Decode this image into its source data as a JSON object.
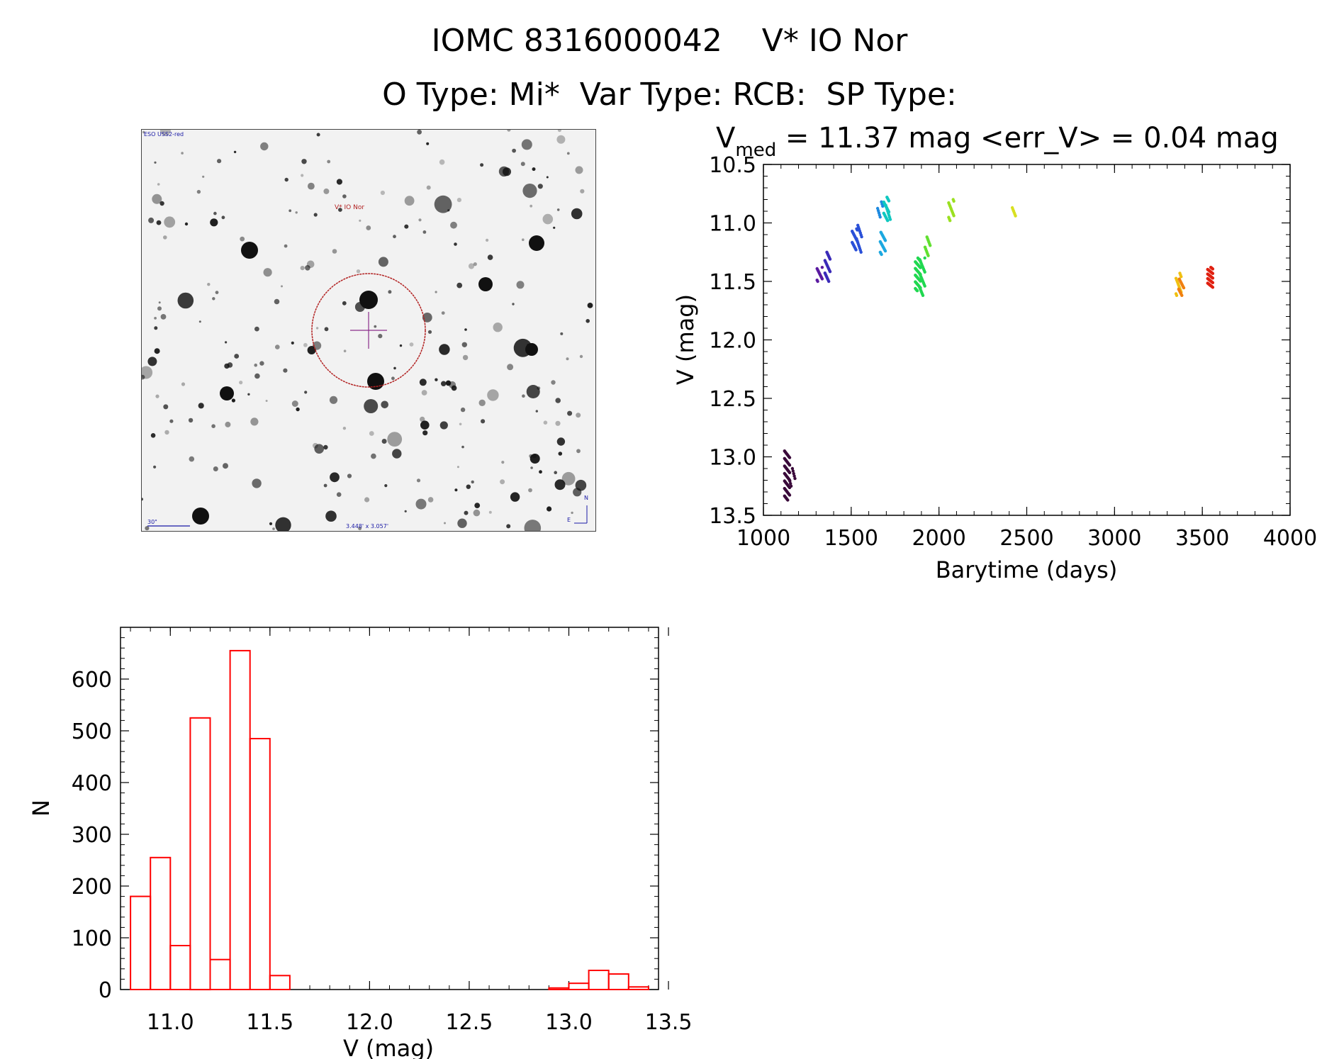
{
  "header": {
    "line1": "IOMC 8316000042    V* IO Nor",
    "line2": "O Type: Mi*  Var Type: RCB:  SP Type:"
  },
  "finder": {
    "survey_label": "ESO USS2-red",
    "target_label": "V* IO Nor",
    "scale_label": "30\"",
    "fov_label": "3.448' x 3.057'",
    "north_label": "N",
    "east_label": "E",
    "colors": {
      "background": "#f2f2f2",
      "star": "#111111",
      "circle": "#b22222",
      "crosshair": "#8b2e8b",
      "labels": "#1a1aa6"
    }
  },
  "chart_data": [
    {
      "id": "light_curve",
      "type": "scatter",
      "title_main": "V",
      "title_sub": "med",
      "title_rest": " = 11.37 mag <err_V> = 0.04 mag",
      "xlabel": "Barytime (days)",
      "ylabel": "V (mag)",
      "xlim": [
        1000,
        4000
      ],
      "ylim": [
        13.5,
        10.5
      ],
      "y_inverted": true,
      "xticks": [
        1000,
        1500,
        2000,
        2500,
        3000,
        3500,
        4000
      ],
      "yticks": [
        10.5,
        11.0,
        11.5,
        12.0,
        12.5,
        13.0,
        13.5
      ],
      "xtick_labels": [
        "1000",
        "1500",
        "2000",
        "2500",
        "3000",
        "3500",
        "4000"
      ],
      "ytick_labels": [
        "10.5",
        "11.0",
        "11.5",
        "12.0",
        "12.5",
        "13.0",
        "13.5"
      ],
      "clusters": [
        {
          "x": 1135,
          "y_min": 12.95,
          "y_max": 13.37,
          "color": "#3a0a3a",
          "n": 60
        },
        {
          "x": 1165,
          "y_min": 13.1,
          "y_max": 13.25,
          "color": "#3a0a3a",
          "n": 8
        },
        {
          "x": 1320,
          "y_min": 11.38,
          "y_max": 11.5,
          "color": "#5a1aa0",
          "n": 12
        },
        {
          "x": 1365,
          "y_min": 11.25,
          "y_max": 11.5,
          "color": "#3a2ab8",
          "n": 22
        },
        {
          "x": 1520,
          "y_min": 11.05,
          "y_max": 11.23,
          "color": "#2a50d8",
          "n": 18
        },
        {
          "x": 1545,
          "y_min": 11.02,
          "y_max": 11.25,
          "color": "#2a50d8",
          "n": 15
        },
        {
          "x": 1665,
          "y_min": 10.82,
          "y_max": 10.95,
          "color": "#1e8ae0",
          "n": 8
        },
        {
          "x": 1680,
          "y_min": 11.08,
          "y_max": 11.27,
          "color": "#1ca8e0",
          "n": 20
        },
        {
          "x": 1700,
          "y_min": 10.78,
          "y_max": 10.98,
          "color": "#10c8c0",
          "n": 20
        },
        {
          "x": 1712,
          "y_min": 10.85,
          "y_max": 10.97,
          "color": "#10c8c0",
          "n": 8
        },
        {
          "x": 1880,
          "y_min": 11.3,
          "y_max": 11.58,
          "color": "#20d850",
          "n": 45
        },
        {
          "x": 1905,
          "y_min": 11.3,
          "y_max": 11.62,
          "color": "#20d850",
          "n": 25
        },
        {
          "x": 1935,
          "y_min": 11.12,
          "y_max": 11.28,
          "color": "#60e030",
          "n": 12
        },
        {
          "x": 2070,
          "y_min": 10.8,
          "y_max": 10.98,
          "color": "#9ae020",
          "n": 14
        },
        {
          "x": 2425,
          "y_min": 10.87,
          "y_max": 10.94,
          "color": "#d8e020",
          "n": 6
        },
        {
          "x": 3365,
          "y_min": 11.43,
          "y_max": 11.62,
          "color": "#f0c010",
          "n": 14
        },
        {
          "x": 3380,
          "y_min": 11.48,
          "y_max": 11.62,
          "color": "#f08010",
          "n": 14
        },
        {
          "x": 3545,
          "y_min": 11.38,
          "y_max": 11.55,
          "color": "#e02010",
          "n": 40
        }
      ]
    },
    {
      "id": "histogram",
      "type": "bar",
      "xlabel": "V (mag)",
      "ylabel": "N",
      "xlim": [
        10.75,
        13.45
      ],
      "ylim": [
        0,
        700
      ],
      "xticks": [
        11.0,
        11.5,
        12.0,
        12.5,
        13.0,
        13.5
      ],
      "yticks": [
        0,
        100,
        200,
        300,
        400,
        500,
        600
      ],
      "xtick_labels": [
        "11.0",
        "11.5",
        "12.0",
        "12.5",
        "13.0",
        "13.5"
      ],
      "ytick_labels": [
        "0",
        "100",
        "200",
        "300",
        "400",
        "500",
        "600"
      ],
      "bin_width": 0.1,
      "bin_starts": [
        10.8,
        10.9,
        11.0,
        11.1,
        11.2,
        11.3,
        11.4,
        11.5,
        11.6,
        11.7,
        11.8,
        11.9,
        12.0,
        12.1,
        12.2,
        12.3,
        12.4,
        12.5,
        12.6,
        12.7,
        12.8,
        12.9,
        13.0,
        13.1,
        13.2,
        13.3
      ],
      "counts": [
        180,
        255,
        85,
        525,
        58,
        655,
        485,
        27,
        0,
        0,
        0,
        0,
        0,
        0,
        0,
        0,
        0,
        0,
        0,
        0,
        0,
        3,
        12,
        37,
        30,
        5
      ],
      "color": "#ff0000"
    }
  ]
}
